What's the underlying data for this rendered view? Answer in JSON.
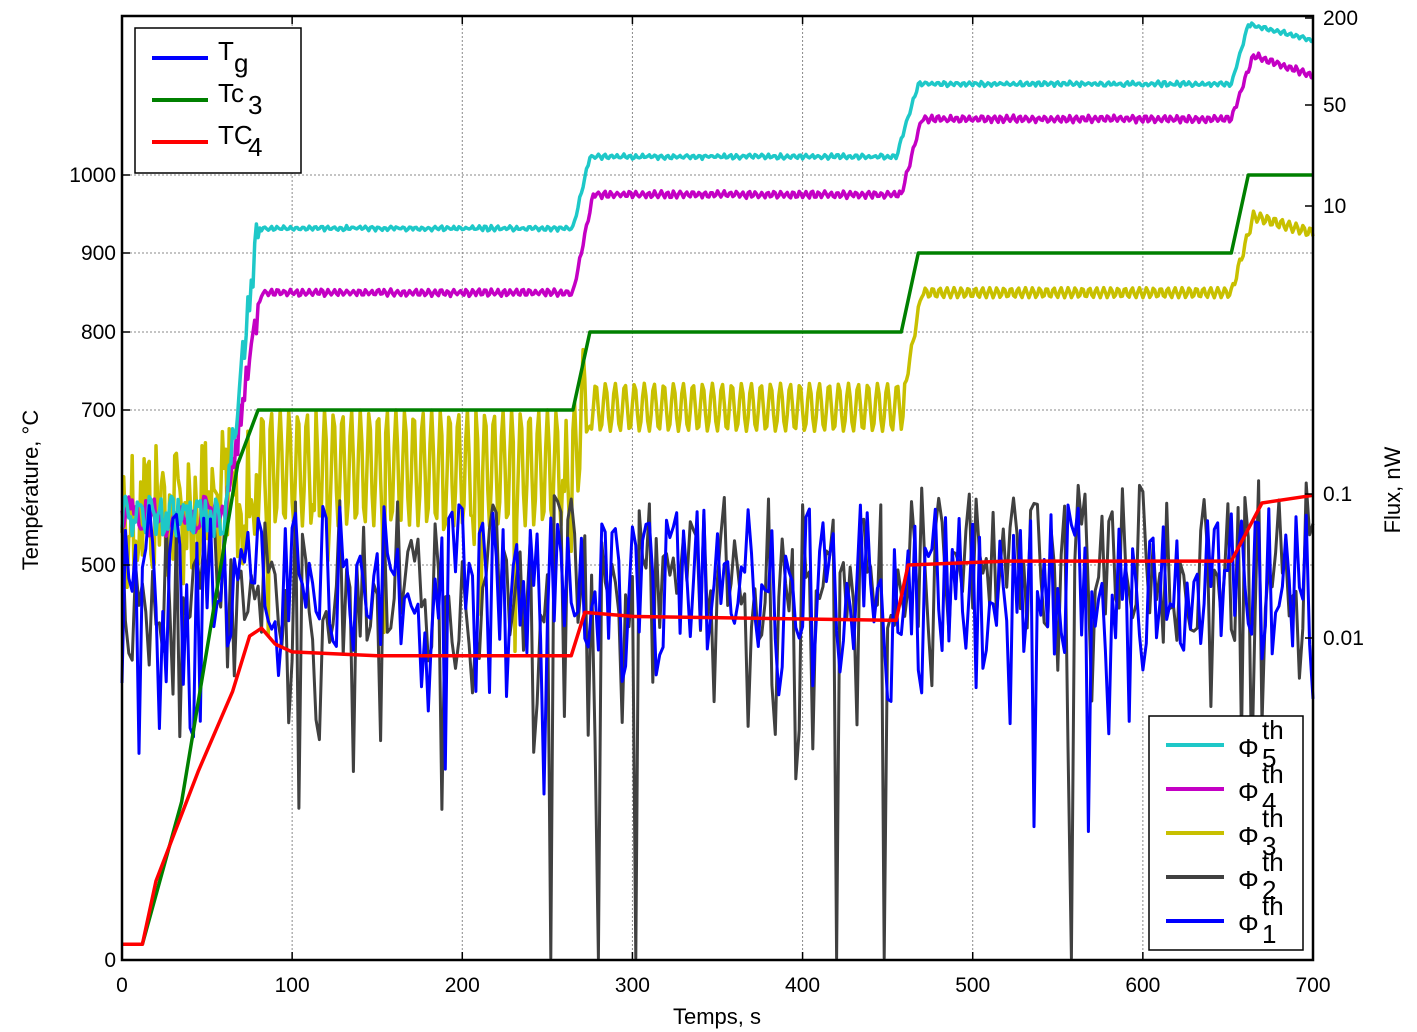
{
  "chart_data": {
    "type": "line",
    "xlabel": "Temps, s",
    "ylabel_left": "Température, °C",
    "ylabel_right": "Flux, nW",
    "xlim": [
      0,
      700
    ],
    "x_ticks": [
      "0",
      "100",
      "200",
      "300",
      "400",
      "500",
      "600",
      "700"
    ],
    "y_left_ticks": [
      {
        "value": 0,
        "label": "0"
      },
      {
        "value": 500,
        "label": "500"
      },
      {
        "value": 700,
        "label": "700"
      },
      {
        "value": 800,
        "label": "800"
      },
      {
        "value": 900,
        "label": "900"
      },
      {
        "value": 1000,
        "label": "1000"
      }
    ],
    "y_right_ticks": [
      {
        "value": 0.01,
        "label": "0.01"
      },
      {
        "value": 0.1,
        "label": "0.1"
      },
      {
        "value": 10,
        "label": "10"
      },
      {
        "value": 50,
        "label": "50"
      },
      {
        "value": 200,
        "label": "200"
      }
    ],
    "grid": true,
    "legend_left_placement": "top-left",
    "legend_right_placement": "bottom-right",
    "temperature_series": [
      {
        "name": "T",
        "sub": "g",
        "color": "#0000ff",
        "points": [
          [
            0,
            500
          ],
          [
            700,
            500
          ]
        ]
      },
      {
        "name": "Tc",
        "sub": "3",
        "color": "#008000",
        "points": [
          [
            0,
            20
          ],
          [
            12,
            20
          ],
          [
            35,
            200
          ],
          [
            68,
            630
          ],
          [
            80,
            700
          ],
          [
            265,
            700
          ],
          [
            275,
            800
          ],
          [
            458,
            800
          ],
          [
            468,
            900
          ],
          [
            652,
            900
          ],
          [
            662,
            1000
          ],
          [
            700,
            1000
          ]
        ]
      },
      {
        "name": "TC",
        "sub": "4",
        "color": "#ff0000",
        "points": [
          [
            0,
            20
          ],
          [
            12,
            20
          ],
          [
            20,
            100
          ],
          [
            45,
            240
          ],
          [
            65,
            340
          ],
          [
            75,
            410
          ],
          [
            82,
            420
          ],
          [
            90,
            400
          ],
          [
            100,
            390
          ],
          [
            150,
            385
          ],
          [
            264,
            385
          ],
          [
            272,
            440
          ],
          [
            300,
            435
          ],
          [
            455,
            430
          ],
          [
            462,
            500
          ],
          [
            520,
            505
          ],
          [
            652,
            505
          ],
          [
            670,
            580
          ],
          [
            700,
            590
          ]
        ]
      }
    ],
    "flux_series": [
      {
        "name": "Φ",
        "sup": "th",
        "sub": "5",
        "color": "#1ec8c8",
        "levels": [
          [
            0,
            0.07
          ],
          [
            60,
            0.07
          ],
          [
            80,
            7.0
          ],
          [
            265,
            7.0
          ],
          [
            275,
            22
          ],
          [
            455,
            22
          ],
          [
            468,
            70
          ],
          [
            652,
            70
          ],
          [
            662,
            180
          ],
          [
            672,
            170
          ],
          [
            700,
            140
          ]
        ]
      },
      {
        "name": "Φ",
        "sup": "th",
        "sub": "4",
        "color": "#c400c4",
        "levels": [
          [
            0,
            0.07
          ],
          [
            60,
            0.07
          ],
          [
            82,
            2.5
          ],
          [
            265,
            2.5
          ],
          [
            277,
            12
          ],
          [
            458,
            12
          ],
          [
            470,
            40
          ],
          [
            652,
            40
          ],
          [
            665,
            110
          ],
          [
            700,
            80
          ]
        ]
      },
      {
        "name": "Φ",
        "sup": "th",
        "sub": "3",
        "color": "#c8c000",
        "levels": [
          [
            0,
            0.08
          ],
          [
            265,
            0.08
          ],
          [
            275,
            0.4
          ],
          [
            458,
            0.4
          ],
          [
            470,
            2.5
          ],
          [
            652,
            2.5
          ],
          [
            665,
            8.5
          ],
          [
            700,
            6.5
          ]
        ]
      },
      {
        "name": "Φ",
        "sup": "th",
        "sub": "2",
        "color": "#404040",
        "levels": [
          [
            0,
            0.02
          ],
          [
            700,
            0.03
          ]
        ]
      },
      {
        "name": "Φ",
        "sup": "th",
        "sub": "1",
        "color": "#0000ff",
        "levels": [
          [
            0,
            0.02
          ],
          [
            700,
            0.02
          ]
        ]
      }
    ]
  }
}
